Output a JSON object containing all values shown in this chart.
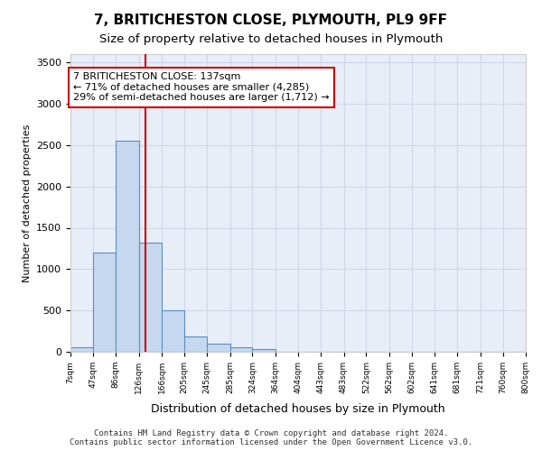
{
  "title1": "7, BRITICHESTON CLOSE, PLYMOUTH, PL9 9FF",
  "title2": "Size of property relative to detached houses in Plymouth",
  "xlabel": "Distribution of detached houses by size in Plymouth",
  "ylabel": "Number of detached properties",
  "bin_edges": [
    7,
    47,
    86,
    126,
    166,
    205,
    245,
    285,
    324,
    364,
    404,
    443,
    483,
    522,
    562,
    602,
    641,
    681,
    721,
    760,
    800
  ],
  "bar_heights": [
    50,
    1200,
    2550,
    1320,
    500,
    190,
    100,
    50,
    30,
    5,
    2,
    2,
    1,
    0,
    0,
    0,
    0,
    0,
    0,
    0
  ],
  "bar_color": "#c5d8f0",
  "bar_edge_color": "#5a8fc2",
  "grid_color": "#d0d8e8",
  "bg_color": "#e8eef8",
  "property_size": 137,
  "annotation_text": "7 BRITICHESTON CLOSE: 137sqm\n← 71% of detached houses are smaller (4,285)\n29% of semi-detached houses are larger (1,712) →",
  "annotation_box_color": "#cc0000",
  "vline_color": "#cc0000",
  "ylim": [
    0,
    3600
  ],
  "yticks": [
    0,
    500,
    1000,
    1500,
    2000,
    2500,
    3000,
    3500
  ],
  "footer1": "Contains HM Land Registry data © Crown copyright and database right 2024.",
  "footer2": "Contains public sector information licensed under the Open Government Licence v3.0."
}
